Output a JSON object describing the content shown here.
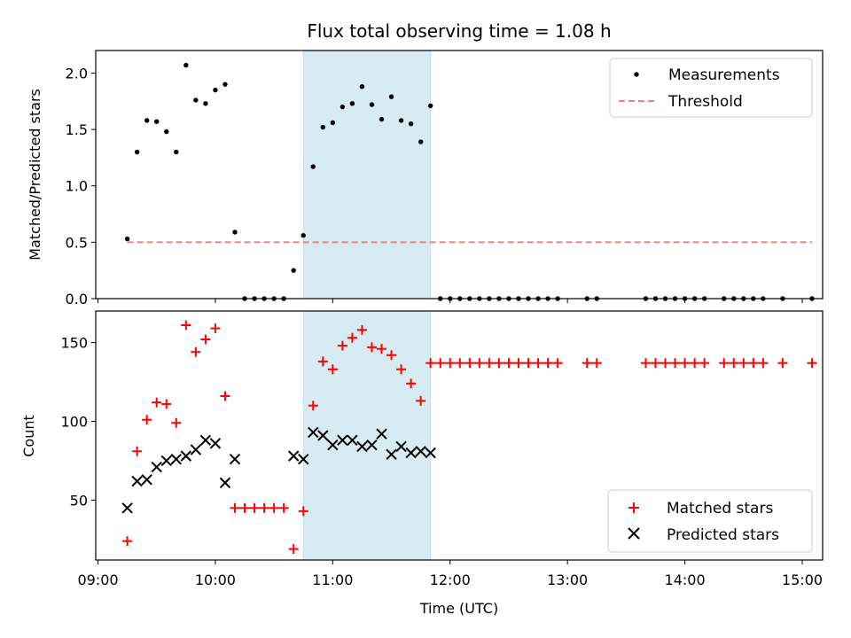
{
  "chart_data": [
    {
      "type": "scatter",
      "title": "Flux total observing time = 1.08 h",
      "xlabel": "",
      "ylabel": "Matched/Predicted stars",
      "xlim": [
        "09:00",
        "15:05"
      ],
      "ylim": [
        0,
        2.2
      ],
      "yticks": [
        "0.0",
        "0.5",
        "1.0",
        "1.5",
        "2.0"
      ],
      "grid": false,
      "legend_position": "top-right",
      "highlight_span": [
        "10:45",
        "11:50"
      ],
      "series": [
        {
          "name": "Measurements",
          "marker": "dot",
          "color": "#000000",
          "points": [
            [
              "09:15",
              0.53
            ],
            [
              "09:20",
              1.3
            ],
            [
              "09:25",
              1.58
            ],
            [
              "09:30",
              1.57
            ],
            [
              "09:35",
              1.48
            ],
            [
              "09:40",
              1.3
            ],
            [
              "09:45",
              2.07
            ],
            [
              "09:50",
              1.76
            ],
            [
              "09:55",
              1.73
            ],
            [
              "10:00",
              1.85
            ],
            [
              "10:05",
              1.9
            ],
            [
              "10:10",
              0.59
            ],
            [
              "10:15",
              0
            ],
            [
              "10:20",
              0
            ],
            [
              "10:25",
              0
            ],
            [
              "10:30",
              0
            ],
            [
              "10:35",
              0
            ],
            [
              "10:40",
              0.25
            ],
            [
              "10:45",
              0.56
            ],
            [
              "10:50",
              1.17
            ],
            [
              "10:55",
              1.52
            ],
            [
              "11:00",
              1.56
            ],
            [
              "11:05",
              1.7
            ],
            [
              "11:10",
              1.73
            ],
            [
              "11:15",
              1.88
            ],
            [
              "11:20",
              1.72
            ],
            [
              "11:25",
              1.59
            ],
            [
              "11:30",
              1.79
            ],
            [
              "11:35",
              1.58
            ],
            [
              "11:40",
              1.55
            ],
            [
              "11:45",
              1.39
            ],
            [
              "11:50",
              1.71
            ],
            [
              "11:55",
              0
            ],
            [
              "12:00",
              0
            ],
            [
              "12:05",
              0
            ],
            [
              "12:10",
              0
            ],
            [
              "12:15",
              0
            ],
            [
              "12:20",
              0
            ],
            [
              "12:25",
              0
            ],
            [
              "12:30",
              0
            ],
            [
              "12:35",
              0
            ],
            [
              "12:40",
              0
            ],
            [
              "12:45",
              0
            ],
            [
              "12:50",
              0
            ],
            [
              "12:55",
              0
            ],
            [
              "13:10",
              0
            ],
            [
              "13:15",
              0
            ],
            [
              "13:40",
              0
            ],
            [
              "13:45",
              0
            ],
            [
              "13:50",
              0
            ],
            [
              "13:55",
              0
            ],
            [
              "14:00",
              0
            ],
            [
              "14:05",
              0
            ],
            [
              "14:10",
              0
            ],
            [
              "14:20",
              0
            ],
            [
              "14:25",
              0
            ],
            [
              "14:30",
              0
            ],
            [
              "14:35",
              0
            ],
            [
              "14:40",
              0
            ],
            [
              "14:50",
              0
            ],
            [
              "15:05",
              0
            ]
          ]
        },
        {
          "name": "Threshold",
          "marker": "dashed-line",
          "color": "#f08080",
          "points": [
            [
              "09:15",
              0.5
            ],
            [
              "15:05",
              0.5
            ]
          ]
        }
      ],
      "legend": [
        "Measurements",
        "Threshold"
      ]
    },
    {
      "type": "scatter",
      "title": "",
      "xlabel": "Time (UTC)",
      "ylabel": "Count",
      "xlim": [
        "09:00",
        "15:05"
      ],
      "ylim": [
        12,
        170
      ],
      "yticks": [
        "50",
        "100",
        "150"
      ],
      "xticks": [
        "09:00",
        "10:00",
        "11:00",
        "12:00",
        "13:00",
        "14:00",
        "15:00"
      ],
      "grid": false,
      "legend_position": "bottom-right",
      "highlight_span": [
        "10:45",
        "11:50"
      ],
      "series": [
        {
          "name": "Matched stars",
          "marker": "plus",
          "color": "#ff0000",
          "points": [
            [
              "09:15",
              24
            ],
            [
              "09:20",
              81
            ],
            [
              "09:25",
              101
            ],
            [
              "09:30",
              112
            ],
            [
              "09:35",
              111
            ],
            [
              "09:40",
              99
            ],
            [
              "09:45",
              161
            ],
            [
              "09:50",
              144
            ],
            [
              "09:55",
              152
            ],
            [
              "10:00",
              159
            ],
            [
              "10:05",
              116
            ],
            [
              "10:10",
              45
            ],
            [
              "10:15",
              45
            ],
            [
              "10:20",
              45
            ],
            [
              "10:25",
              45
            ],
            [
              "10:30",
              45
            ],
            [
              "10:35",
              45
            ],
            [
              "10:40",
              19
            ],
            [
              "10:45",
              43
            ],
            [
              "10:50",
              110
            ],
            [
              "10:55",
              138
            ],
            [
              "11:00",
              133
            ],
            [
              "11:05",
              148
            ],
            [
              "11:10",
              153
            ],
            [
              "11:15",
              158
            ],
            [
              "11:20",
              147
            ],
            [
              "11:25",
              146
            ],
            [
              "11:30",
              142
            ],
            [
              "11:35",
              133
            ],
            [
              "11:40",
              124
            ],
            [
              "11:45",
              113
            ],
            [
              "11:50",
              137
            ],
            [
              "11:55",
              137
            ],
            [
              "12:00",
              137
            ],
            [
              "12:05",
              137
            ],
            [
              "12:10",
              137
            ],
            [
              "12:15",
              137
            ],
            [
              "12:20",
              137
            ],
            [
              "12:25",
              137
            ],
            [
              "12:30",
              137
            ],
            [
              "12:35",
              137
            ],
            [
              "12:40",
              137
            ],
            [
              "12:45",
              137
            ],
            [
              "12:50",
              137
            ],
            [
              "12:55",
              137
            ],
            [
              "13:10",
              137
            ],
            [
              "13:15",
              137
            ],
            [
              "13:40",
              137
            ],
            [
              "13:45",
              137
            ],
            [
              "13:50",
              137
            ],
            [
              "13:55",
              137
            ],
            [
              "14:00",
              137
            ],
            [
              "14:05",
              137
            ],
            [
              "14:10",
              137
            ],
            [
              "14:20",
              137
            ],
            [
              "14:25",
              137
            ],
            [
              "14:30",
              137
            ],
            [
              "14:35",
              137
            ],
            [
              "14:40",
              137
            ],
            [
              "14:50",
              137
            ],
            [
              "15:05",
              137
            ]
          ]
        },
        {
          "name": "Predicted stars",
          "marker": "x",
          "color": "#000000",
          "points": [
            [
              "09:15",
              45
            ],
            [
              "09:20",
              62
            ],
            [
              "09:25",
              63
            ],
            [
              "09:30",
              71
            ],
            [
              "09:35",
              75
            ],
            [
              "09:40",
              76
            ],
            [
              "09:45",
              78
            ],
            [
              "09:50",
              82
            ],
            [
              "09:55",
              88
            ],
            [
              "10:00",
              86
            ],
            [
              "10:05",
              61
            ],
            [
              "10:10",
              76
            ],
            [
              "10:40",
              78
            ],
            [
              "10:45",
              76
            ],
            [
              "10:50",
              93
            ],
            [
              "10:55",
              91
            ],
            [
              "11:00",
              85
            ],
            [
              "11:05",
              88
            ],
            [
              "11:10",
              88
            ],
            [
              "11:15",
              84
            ],
            [
              "11:20",
              85
            ],
            [
              "11:25",
              92
            ],
            [
              "11:30",
              79
            ],
            [
              "11:35",
              84
            ],
            [
              "11:40",
              80
            ],
            [
              "11:45",
              81
            ],
            [
              "11:50",
              80
            ]
          ]
        }
      ],
      "legend": [
        "Matched stars",
        "Predicted stars"
      ]
    }
  ]
}
